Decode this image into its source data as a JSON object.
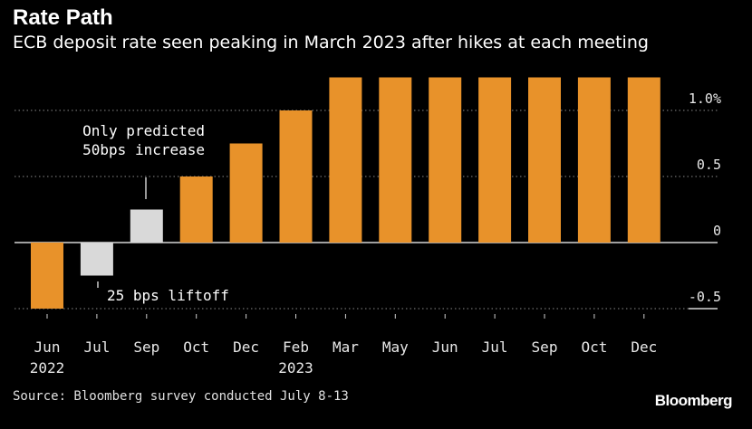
{
  "header": {
    "title": "Rate Path",
    "subtitle": "ECB deposit rate seen peaking in March 2023 after hikes at each meeting"
  },
  "footer": {
    "source": "Source: Bloomberg survey conducted July 8-13",
    "logo": "Bloomberg"
  },
  "colors": {
    "background": "#000000",
    "bar": "#e8922a",
    "bar_highlight": "#d9d9d9",
    "grid": "#8a8a8a"
  },
  "chart_data": {
    "type": "bar",
    "categories": [
      "Jun",
      "Jul",
      "Sep",
      "Oct",
      "Dec",
      "Feb",
      "Mar",
      "May",
      "Jun",
      "Jul",
      "Sep",
      "Oct",
      "Dec"
    ],
    "category_sublabels": [
      "2022",
      "",
      "",
      "",
      "",
      "2023",
      "",
      "",
      "",
      "",
      "",
      "",
      ""
    ],
    "values": [
      -0.5,
      -0.25,
      0.25,
      0.5,
      0.75,
      1.0,
      1.25,
      1.25,
      1.25,
      1.25,
      1.25,
      1.25,
      1.25
    ],
    "highlighted": [
      false,
      true,
      true,
      false,
      false,
      false,
      false,
      false,
      false,
      false,
      false,
      false,
      false
    ],
    "yticks": [
      1.0,
      0.5,
      0,
      -0.5
    ],
    "ytick_labels": [
      "1.0%",
      "0.5",
      "0",
      "-0.5"
    ],
    "ylim": [
      -0.5,
      1.25
    ],
    "grid": true,
    "annotations": [
      {
        "text_lines": [
          "Only predicted",
          "50bps increase"
        ],
        "category_index": 2
      },
      {
        "text_lines": [
          "25 bps liftoff"
        ],
        "category_index": 1
      }
    ]
  }
}
